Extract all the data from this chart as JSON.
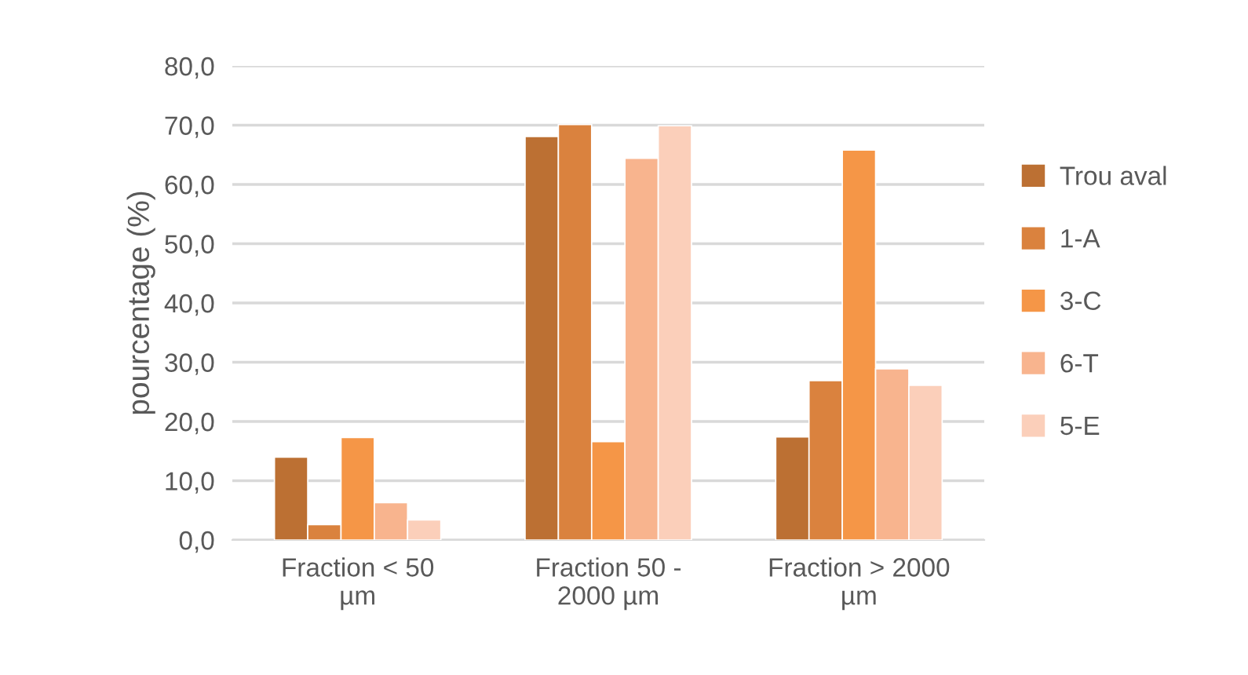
{
  "chart_data": {
    "type": "bar",
    "ylabel": "pourcentage (%)",
    "categories": [
      "Fraction < 50\nµm",
      "Fraction 50 -\n2000 µm",
      "Fraction > 2000\nµm"
    ],
    "series": [
      {
        "name": "Trou aval",
        "color": "#bc7033",
        "values": [
          14.0,
          68.1,
          17.4
        ]
      },
      {
        "name": "1-A",
        "color": "#da823e",
        "values": [
          2.6,
          70.1,
          26.9
        ]
      },
      {
        "name": "3-C",
        "color": "#f59647",
        "values": [
          17.3,
          16.6,
          65.8
        ]
      },
      {
        "name": "6-T",
        "color": "#f8b48e",
        "values": [
          6.3,
          64.4,
          28.9
        ]
      },
      {
        "name": "5-E",
        "color": "#fbcfba",
        "values": [
          3.4,
          69.9,
          26.1
        ]
      }
    ],
    "ylim": [
      0,
      80
    ],
    "yticks": [
      {
        "value": 0,
        "label": "0,0"
      },
      {
        "value": 10,
        "label": "10,0"
      },
      {
        "value": 20,
        "label": "20,0"
      },
      {
        "value": 30,
        "label": "30,0"
      },
      {
        "value": 40,
        "label": "40,0"
      },
      {
        "value": 50,
        "label": "50,0"
      },
      {
        "value": 60,
        "label": "60,0"
      },
      {
        "value": 70,
        "label": "70,0"
      },
      {
        "value": 80,
        "label": "80,0"
      }
    ],
    "grid": "y",
    "legend": "right"
  }
}
